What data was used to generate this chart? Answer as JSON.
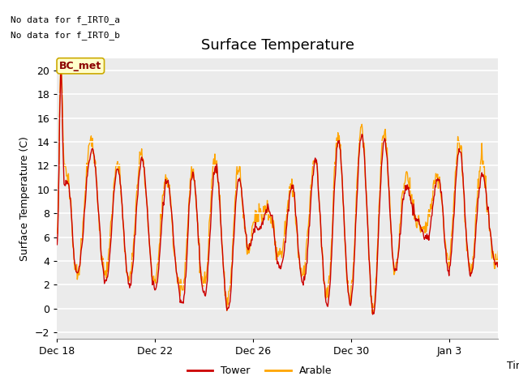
{
  "title": "Surface Temperature",
  "xlabel": "Time",
  "ylabel": "Surface Temperature (C)",
  "ylim": [
    -2.5,
    21
  ],
  "yticks": [
    -2,
    0,
    2,
    4,
    6,
    8,
    10,
    12,
    14,
    16,
    18,
    20
  ],
  "plot_bg_color": "#ebebeb",
  "tower_color": "#cc0000",
  "arable_color": "#ffa500",
  "annotation_text1": "No data for f_IRT0_a",
  "annotation_text2": "No data for f_IRT0_b",
  "bc_met_label": "BC_met",
  "bc_met_bg": "#ffffcc",
  "bc_met_border": "#ccaa00",
  "title_fontsize": 13,
  "axis_fontsize": 9,
  "tick_fontsize": 9,
  "legend_fontsize": 9,
  "annotation_fontsize": 8,
  "line_width": 1.0,
  "xtick_labels": [
    "Dec 18",
    "Dec 22",
    "Dec 26",
    "Dec 30",
    "Jan 3"
  ],
  "xtick_positions": [
    0,
    4,
    8,
    12,
    16
  ],
  "num_points": 700
}
